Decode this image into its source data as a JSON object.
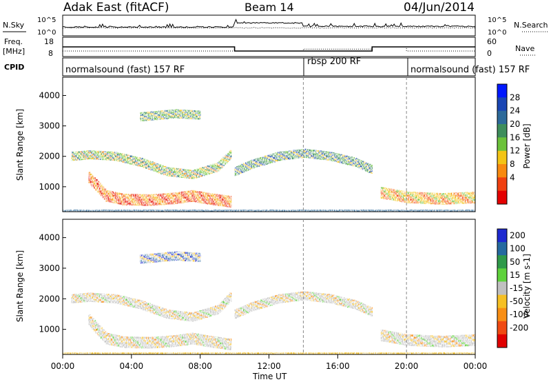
{
  "header": {
    "station": "Adak East (fitACF)",
    "beam": "Beam 14",
    "date": "04/Jun/2014"
  },
  "noise_panel": {
    "left_label": "N.Sky",
    "right_label": "N.Search",
    "left_ticks": [
      "10^5",
      "10^0"
    ],
    "right_ticks": [
      "10^5",
      "10^0"
    ]
  },
  "freq_panel": {
    "left_label_1": "Freq.",
    "left_label_2": "[MHz]",
    "right_label": "Nave",
    "left_ticks": [
      "18",
      "8"
    ],
    "right_ticks": [
      "60",
      "0"
    ]
  },
  "cpid": {
    "label": "CPID",
    "segments": [
      {
        "text": "normalsound (fast) 157 RF",
        "start_hour": 0
      },
      {
        "text": "rbsp 200 RF",
        "start_hour": 14
      },
      {
        "text": "normalsound (fast) 157 RF",
        "start_hour": 20
      }
    ]
  },
  "power_panel": {
    "ylabel": "Slant Range [km]",
    "yticks": [
      "1000",
      "2000",
      "3000",
      "4000"
    ],
    "colorbar_label": "Power [dB]",
    "colorbar_ticks": [
      "4",
      "8",
      "12",
      "16",
      "20",
      "24",
      "28"
    ],
    "colors": [
      "#0018ff",
      "#1a46b4",
      "#2d6a9a",
      "#3e8e5c",
      "#6cc23a",
      "#f3c416",
      "#f88a10",
      "#f04010",
      "#e40000"
    ]
  },
  "velocity_panel": {
    "ylabel": "Slant Range [km]",
    "yticks": [
      "1000",
      "2000",
      "3000",
      "4000"
    ],
    "colorbar_label": "Velocity [m s-1]",
    "colorbar_ticks": [
      "200",
      "100",
      "50",
      "15",
      "-15",
      "-50",
      "-100",
      "-200"
    ],
    "colors": [
      "#1e2ad0",
      "#256aa0",
      "#2f9a4a",
      "#5fd23c",
      "#c0c0c0",
      "#f6c024",
      "#f88e14",
      "#f04a12",
      "#e00000"
    ]
  },
  "x_axis": {
    "label": "Time UT",
    "ticks": [
      "00:00",
      "04:00",
      "08:00",
      "12:00",
      "16:00",
      "20:00",
      "00:00"
    ]
  },
  "chart_data": {
    "type": "heatmap",
    "title": "Adak East (fitACF)",
    "x_range_hours": [
      0,
      24
    ],
    "y_range_km": [
      180,
      4600
    ],
    "ylabel": "Slant Range [km]",
    "xlabel": "Time UT",
    "frequency_MHz": [
      {
        "start_hour": 0,
        "end_hour": 10,
        "value": 13
      },
      {
        "start_hour": 10,
        "end_hour": 18,
        "value": 10.5
      },
      {
        "start_hour": 18,
        "end_hour": 24,
        "value": 13
      }
    ],
    "nave": [
      {
        "start_hour": 0,
        "end_hour": 14,
        "value": 15
      },
      {
        "start_hour": 14,
        "end_hour": 18,
        "value": 22
      },
      {
        "start_hour": 18,
        "end_hour": 20,
        "value": 30
      },
      {
        "start_hour": 20,
        "end_hour": 24,
        "value": 15
      }
    ],
    "backscatter_bands": [
      {
        "name": "near-range",
        "points": [
          [
            1.5,
            1300
          ],
          [
            2.5,
            700
          ],
          [
            3.5,
            580
          ],
          [
            5,
            560
          ],
          [
            6.5,
            620
          ],
          [
            7.5,
            700
          ],
          [
            8.5,
            600
          ],
          [
            9.8,
            500
          ]
        ]
      },
      {
        "name": "mid-range",
        "points": [
          [
            0.5,
            2000
          ],
          [
            1.5,
            2050
          ],
          [
            3,
            2000
          ],
          [
            4.5,
            1800
          ],
          [
            6,
            1500
          ],
          [
            7.5,
            1400
          ],
          [
            9,
            1650
          ],
          [
            9.8,
            2100
          ]
        ]
      },
      {
        "name": "upper",
        "points": [
          [
            4.5,
            3300
          ],
          [
            6.5,
            3400
          ],
          [
            8,
            3350
          ]
        ]
      },
      {
        "name": "arch",
        "points": [
          [
            10,
            1500
          ],
          [
            11,
            1750
          ],
          [
            12.5,
            2000
          ],
          [
            14,
            2100
          ],
          [
            15.5,
            2000
          ],
          [
            17,
            1800
          ],
          [
            18,
            1550
          ]
        ]
      },
      {
        "name": "late-near",
        "points": [
          [
            18.5,
            800
          ],
          [
            20,
            650
          ],
          [
            22,
            600
          ],
          [
            24,
            650
          ]
        ]
      }
    ]
  }
}
